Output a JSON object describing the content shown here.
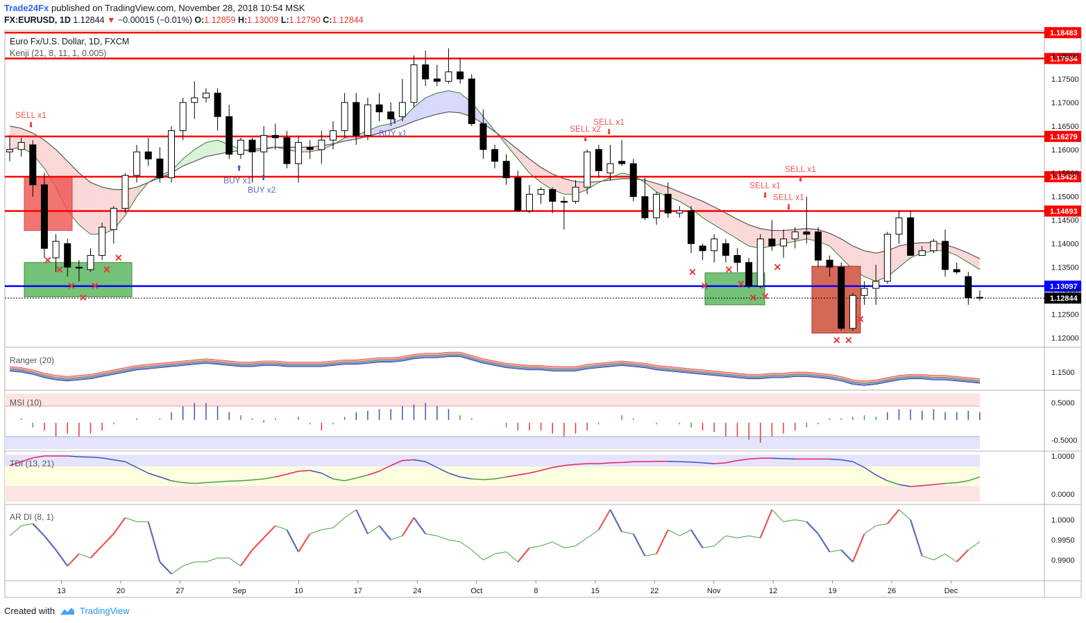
{
  "header": {
    "brand": "Trade24Fx",
    "published": "published on TradingView.com, November 28, 2018 10:54 MSK",
    "symbol": "FX:EURUSD, 1D",
    "last": "1.12844",
    "change": "−0.00015 (−0.01%)",
    "o_label": "O:",
    "o": "1.12859",
    "h_label": "H:",
    "h": "1.13009",
    "l_label": "L:",
    "l": "1.12790",
    "c_label": "C:",
    "c": "1.12844"
  },
  "footer": {
    "created": "Created with",
    "tv": "TradingView"
  },
  "colors": {
    "up": "#ffffff",
    "down": "#000000",
    "level": "#ff0000",
    "support": "#0000ff",
    "sell_zone": "#ef5350",
    "buy_zone": "#66bb6a",
    "cloud_red": "#f8c8c8",
    "cloud_green": "#c8f0c8",
    "cloud_blue": "#c8c8f8"
  },
  "chart_data": {
    "type": "candlestick",
    "title": "Euro Fx/U.S. Dollar, 1D, FXCM",
    "indicator": "Kenji (21, 8, 11, 1, 0.005)",
    "ylim": [
      1.118,
      1.185
    ],
    "ticks": [
      "1.12000",
      "1.12500",
      "1.13000",
      "1.13500",
      "1.14000",
      "1.14500",
      "1.15000",
      "1.15500",
      "1.16000",
      "1.16500",
      "1.17000",
      "1.17500",
      "1.18000"
    ],
    "levels": [
      {
        "value": 1.18483,
        "label": "1.18483",
        "color": "#ff0000"
      },
      {
        "value": 1.17934,
        "label": "1.17934",
        "color": "#ff0000"
      },
      {
        "value": 1.16279,
        "label": "1.16279",
        "color": "#ff0000"
      },
      {
        "value": 1.15422,
        "label": "1.15422",
        "color": "#ff0000"
      },
      {
        "value": 1.14693,
        "label": "1.14693",
        "color": "#ff0000"
      },
      {
        "value": 1.13097,
        "label": "1.13097",
        "color": "#0000ff"
      }
    ],
    "last_price": {
      "value": 1.12844,
      "label": "1.12844"
    },
    "x_labels": [
      "13",
      "20",
      "27",
      "Sep",
      "10",
      "17",
      "24",
      "Oct",
      "8",
      "15",
      "22",
      "Nov",
      "12",
      "19",
      "26",
      "Dec"
    ],
    "x_label_days": [
      3,
      10,
      17,
      24,
      31,
      38,
      45,
      52,
      59,
      66,
      73,
      80,
      87,
      94,
      101,
      108
    ],
    "candles": [
      [
        1.1595,
        1.163,
        1.1575,
        1.16
      ],
      [
        1.16,
        1.1625,
        1.1585,
        1.1615
      ],
      [
        1.161,
        1.162,
        1.15,
        1.1525
      ],
      [
        1.1525,
        1.155,
        1.137,
        1.139
      ],
      [
        1.137,
        1.142,
        1.134,
        1.1405
      ],
      [
        1.14,
        1.141,
        1.133,
        1.135
      ],
      [
        1.135,
        1.1365,
        1.132,
        1.1348
      ],
      [
        1.1345,
        1.139,
        1.134,
        1.1375
      ],
      [
        1.1375,
        1.1445,
        1.1365,
        1.1435
      ],
      [
        1.143,
        1.148,
        1.14,
        1.1475
      ],
      [
        1.1475,
        1.155,
        1.1465,
        1.1545
      ],
      [
        1.1545,
        1.161,
        1.153,
        1.1595
      ],
      [
        1.1595,
        1.1625,
        1.1565,
        1.158
      ],
      [
        1.158,
        1.1605,
        1.153,
        1.154
      ],
      [
        1.154,
        1.165,
        1.153,
        1.164
      ],
      [
        1.164,
        1.171,
        1.162,
        1.17
      ],
      [
        1.17,
        1.1745,
        1.1665,
        1.171
      ],
      [
        1.171,
        1.173,
        1.17,
        1.172
      ],
      [
        1.172,
        1.173,
        1.164,
        1.167
      ],
      [
        1.167,
        1.1695,
        1.158,
        1.159
      ],
      [
        1.159,
        1.1625,
        1.158,
        1.162
      ],
      [
        1.162,
        1.1625,
        1.153,
        1.1595
      ],
      [
        1.1595,
        1.165,
        1.154,
        1.163
      ],
      [
        1.163,
        1.1655,
        1.16,
        1.1625
      ],
      [
        1.1625,
        1.164,
        1.156,
        1.157
      ],
      [
        1.157,
        1.163,
        1.153,
        1.1615
      ],
      [
        1.1605,
        1.162,
        1.158,
        1.16
      ],
      [
        1.16,
        1.164,
        1.157,
        1.162
      ],
      [
        1.162,
        1.166,
        1.16,
        1.164
      ],
      [
        1.164,
        1.172,
        1.1625,
        1.17
      ],
      [
        1.17,
        1.172,
        1.161,
        1.163
      ],
      [
        1.163,
        1.171,
        1.162,
        1.1695
      ],
      [
        1.1695,
        1.172,
        1.166,
        1.168
      ],
      [
        1.168,
        1.17,
        1.165,
        1.1665
      ],
      [
        1.167,
        1.175,
        1.166,
        1.17
      ],
      [
        1.17,
        1.18,
        1.169,
        1.178
      ],
      [
        1.178,
        1.181,
        1.1735,
        1.175
      ],
      [
        1.175,
        1.178,
        1.1735,
        1.1745
      ],
      [
        1.1745,
        1.1815,
        1.174,
        1.1765
      ],
      [
        1.1765,
        1.1795,
        1.174,
        1.175
      ],
      [
        1.175,
        1.176,
        1.165,
        1.1655
      ],
      [
        1.1655,
        1.1685,
        1.158,
        1.16
      ],
      [
        1.16,
        1.161,
        1.156,
        1.1575
      ],
      [
        1.1575,
        1.159,
        1.1525,
        1.154
      ],
      [
        1.154,
        1.1555,
        1.1475,
        1.147
      ],
      [
        1.147,
        1.1525,
        1.1465,
        1.1505
      ],
      [
        1.1505,
        1.152,
        1.1485,
        1.1515
      ],
      [
        1.1515,
        1.152,
        1.1465,
        1.149
      ],
      [
        1.149,
        1.15,
        1.143,
        1.1488
      ],
      [
        1.149,
        1.1535,
        1.1485,
        1.152
      ],
      [
        1.152,
        1.16,
        1.1505,
        1.1595
      ],
      [
        1.16,
        1.161,
        1.154,
        1.1555
      ],
      [
        1.155,
        1.161,
        1.1535,
        1.157
      ],
      [
        1.1575,
        1.162,
        1.1565,
        1.157
      ],
      [
        1.157,
        1.158,
        1.149,
        1.15
      ],
      [
        1.15,
        1.154,
        1.145,
        1.1455
      ],
      [
        1.1455,
        1.151,
        1.144,
        1.1505
      ],
      [
        1.1505,
        1.153,
        1.1455,
        1.1465
      ],
      [
        1.1465,
        1.148,
        1.1455,
        1.147
      ],
      [
        1.147,
        1.148,
        1.138,
        1.14
      ],
      [
        1.1395,
        1.14,
        1.1365,
        1.1385
      ],
      [
        1.1385,
        1.142,
        1.136,
        1.141
      ],
      [
        1.14,
        1.141,
        1.136,
        1.1375
      ],
      [
        1.1375,
        1.139,
        1.134,
        1.136
      ],
      [
        1.136,
        1.137,
        1.1305,
        1.131
      ],
      [
        1.131,
        1.142,
        1.1305,
        1.141
      ],
      [
        1.141,
        1.145,
        1.1385,
        1.1395
      ],
      [
        1.1395,
        1.143,
        1.137,
        1.141
      ],
      [
        1.141,
        1.1435,
        1.139,
        1.1425
      ],
      [
        1.1425,
        1.15,
        1.14,
        1.142
      ],
      [
        1.1425,
        1.1435,
        1.135,
        1.1365
      ],
      [
        1.1365,
        1.1375,
        1.133,
        1.135
      ],
      [
        1.135,
        1.136,
        1.1215,
        1.122
      ],
      [
        1.122,
        1.1295,
        1.1215,
        1.129
      ],
      [
        1.129,
        1.132,
        1.127,
        1.1305
      ],
      [
        1.1305,
        1.1355,
        1.127,
        1.132
      ],
      [
        1.132,
        1.1425,
        1.1315,
        1.142
      ],
      [
        1.142,
        1.147,
        1.14,
        1.1455
      ],
      [
        1.1455,
        1.147,
        1.1375,
        1.1375
      ],
      [
        1.1375,
        1.1395,
        1.1375,
        1.1385
      ],
      [
        1.1385,
        1.141,
        1.138,
        1.1405
      ],
      [
        1.1405,
        1.143,
        1.133,
        1.1345
      ],
      [
        1.1345,
        1.136,
        1.1335,
        1.134
      ],
      [
        1.133,
        1.134,
        1.127,
        1.1285
      ],
      [
        1.12859,
        1.13009,
        1.1279,
        1.12844
      ]
    ],
    "first_candle_day": -7,
    "kenji_fast": [
      1.16,
      1.1605,
      1.159,
      1.156,
      1.152,
      1.147,
      1.144,
      1.142,
      1.142,
      1.143,
      1.146,
      1.15,
      1.153,
      1.1545,
      1.1555,
      1.158,
      1.16,
      1.1615,
      1.162,
      1.161,
      1.16,
      1.1595,
      1.16,
      1.1605,
      1.16,
      1.1595,
      1.1595,
      1.16,
      1.161,
      1.1625,
      1.163,
      1.164,
      1.165,
      1.1655,
      1.1665,
      1.169,
      1.171,
      1.172,
      1.1725,
      1.172,
      1.17,
      1.167,
      1.164,
      1.161,
      1.158,
      1.155,
      1.153,
      1.1515,
      1.1505,
      1.1505,
      1.1515,
      1.153,
      1.154,
      1.155,
      1.1545,
      1.153,
      1.151,
      1.15,
      1.149,
      1.1475,
      1.1455,
      1.144,
      1.1425,
      1.141,
      1.1395,
      1.139,
      1.1395,
      1.14,
      1.1405,
      1.141,
      1.1405,
      1.1395,
      1.137,
      1.1345,
      1.133,
      1.132,
      1.133,
      1.135,
      1.137,
      1.138,
      1.1385,
      1.1385,
      1.1375,
      1.136,
      1.1345
    ],
    "kenji_slow": [
      1.165,
      1.1645,
      1.1635,
      1.162,
      1.16,
      1.1575,
      1.155,
      1.153,
      1.152,
      1.1515,
      1.1515,
      1.152,
      1.153,
      1.154,
      1.155,
      1.1565,
      1.1575,
      1.1585,
      1.159,
      1.1595,
      1.1598,
      1.16,
      1.1603,
      1.1605,
      1.1605,
      1.1605,
      1.1605,
      1.1608,
      1.1612,
      1.1618,
      1.1622,
      1.1628,
      1.1635,
      1.1642,
      1.165,
      1.166,
      1.1668,
      1.1675,
      1.168,
      1.1678,
      1.167,
      1.1655,
      1.1638,
      1.162,
      1.16,
      1.158,
      1.1562,
      1.1548,
      1.1538,
      1.1532,
      1.153,
      1.1532,
      1.1535,
      1.1538,
      1.1538,
      1.1535,
      1.1528,
      1.152,
      1.151,
      1.15,
      1.149,
      1.1478,
      1.1465,
      1.1452,
      1.144,
      1.1432,
      1.1428,
      1.1428,
      1.143,
      1.1432,
      1.143,
      1.1422,
      1.141,
      1.1395,
      1.1385,
      1.138,
      1.1385,
      1.1395,
      1.14,
      1.1402,
      1.1402,
      1.1398,
      1.139,
      1.138,
      1.1368
    ],
    "signals": [
      {
        "text": "SELL x1",
        "type": "sell",
        "day": -5,
        "price": 1.165
      },
      {
        "text": "BUY x1",
        "type": "buy",
        "day": 24,
        "price": 1.1555
      },
      {
        "text": "BUY x2",
        "type": "buy",
        "day": 26,
        "price": 1.1535
      },
      {
        "text": "BUY x1",
        "type": "buy",
        "day": 42,
        "price": 1.1655
      },
      {
        "text": "SELL x2",
        "type": "sell",
        "day": 64,
        "price": 1.162
      },
      {
        "text": "SELL x1",
        "type": "sell",
        "day": 66,
        "price": 1.1635
      },
      {
        "text": "SELL x1",
        "type": "sell",
        "day": 82,
        "price": 1.15
      },
      {
        "text": "SELL x1",
        "type": "sell",
        "day": 84,
        "price": 1.1475
      },
      {
        "text": "SELL x1",
        "type": "sell",
        "day": 86,
        "price": 1.1535
      }
    ],
    "zones": [
      {
        "type": "sell",
        "d0": -6,
        "d1": -2,
        "top": 1.1543,
        "bottom": 1.1428
      },
      {
        "type": "buy",
        "d0": -6,
        "d1": 3,
        "top": 1.136,
        "bottom": 1.1287
      },
      {
        "type": "buy",
        "d0": 76,
        "d1": 81,
        "top": 1.1338,
        "bottom": 1.127
      },
      {
        "type": "buy",
        "d0": 85,
        "d1": 88,
        "top": 1.1352,
        "bottom": 1.121
      },
      {
        "type": "sell",
        "d0": 85,
        "d1": 88,
        "top": 1.1352,
        "bottom": 1.121
      }
    ],
    "crosses": [
      [
        -4,
        1.1365
      ],
      [
        -3,
        1.1345
      ],
      [
        -2,
        1.131
      ],
      [
        -1,
        1.1285
      ],
      [
        0,
        1.131
      ],
      [
        1,
        1.1345
      ],
      [
        2,
        1.137
      ],
      [
        74,
        1.134
      ],
      [
        75,
        1.131
      ],
      [
        77,
        1.1345
      ],
      [
        78,
        1.1315
      ],
      [
        79,
        1.1285
      ],
      [
        80,
        1.1288
      ],
      [
        81,
        1.135
      ],
      [
        87,
        1.1195
      ],
      [
        88,
        1.1195
      ],
      [
        89,
        1.124
      ]
    ],
    "panes": [
      {
        "name": "Ranger (20)",
        "ticks": [
          "1.1500"
        ]
      },
      {
        "name": "MSI (10)",
        "ticks": [
          "0.5000",
          "-0.5000"
        ]
      },
      {
        "name": "TDI (13, 21)",
        "ticks": [
          "1.0000",
          "0.0000"
        ]
      },
      {
        "name": "AR DI (8, 1)",
        "ticks": [
          "1.0000",
          "0.9950",
          "0.9900"
        ]
      }
    ],
    "ranger": [
      1.153,
      1.152,
      1.15,
      1.147,
      1.145,
      1.144,
      1.145,
      1.146,
      1.148,
      1.15,
      1.152,
      1.154,
      1.155,
      1.156,
      1.157,
      1.158,
      1.159,
      1.16,
      1.159,
      1.158,
      1.157,
      1.157,
      1.158,
      1.158,
      1.157,
      1.157,
      1.157,
      1.157,
      1.158,
      1.159,
      1.159,
      1.16,
      1.161,
      1.161,
      1.162,
      1.164,
      1.165,
      1.165,
      1.166,
      1.166,
      1.163,
      1.16,
      1.158,
      1.156,
      1.155,
      1.154,
      1.154,
      1.153,
      1.153,
      1.153,
      1.155,
      1.156,
      1.157,
      1.158,
      1.157,
      1.156,
      1.154,
      1.153,
      1.152,
      1.151,
      1.15,
      1.149,
      1.148,
      1.147,
      1.146,
      1.146,
      1.147,
      1.147,
      1.148,
      1.148,
      1.147,
      1.146,
      1.144,
      1.141,
      1.14,
      1.141,
      1.143,
      1.145,
      1.146,
      1.146,
      1.145,
      1.145,
      1.144,
      1.143,
      1.142
    ],
    "msi": [
      0.0,
      0.1,
      -0.2,
      -0.3,
      -0.5,
      -0.4,
      -0.5,
      -0.4,
      -0.3,
      -0.1,
      0.05,
      0.1,
      0.05,
      0.1,
      0.3,
      0.5,
      0.6,
      0.6,
      0.5,
      0.3,
      0.2,
      0.1,
      -0.05,
      0.1,
      0.0,
      0.15,
      -0.1,
      -0.3,
      -0.1,
      0.15,
      0.3,
      0.35,
      0.4,
      0.4,
      0.5,
      0.55,
      0.6,
      0.5,
      0.4,
      0.2,
      0.1,
      0.0,
      0.0,
      -0.2,
      -0.3,
      -0.3,
      -0.3,
      -0.4,
      -0.5,
      -0.4,
      -0.3,
      -0.1,
      0.0,
      0.2,
      0.1,
      0.05,
      -0.1,
      0.0,
      -0.1,
      -0.2,
      -0.3,
      -0.35,
      -0.5,
      -0.5,
      -0.6,
      -0.7,
      -0.5,
      -0.4,
      -0.3,
      -0.2,
      -0.1,
      0.1,
      0.1,
      0.15,
      0.2,
      0.15,
      0.3,
      0.4,
      0.4,
      0.35,
      0.4,
      0.3,
      0.3,
      0.35,
      0.3
    ],
    "tdi": [
      0.75,
      0.85,
      0.95,
      1.0,
      1.0,
      1.0,
      0.98,
      0.97,
      0.95,
      0.9,
      0.85,
      0.7,
      0.55,
      0.45,
      0.35,
      0.3,
      0.28,
      0.3,
      0.32,
      0.34,
      0.35,
      0.37,
      0.4,
      0.45,
      0.52,
      0.6,
      0.62,
      0.55,
      0.4,
      0.35,
      0.42,
      0.5,
      0.6,
      0.75,
      0.88,
      0.9,
      0.85,
      0.7,
      0.55,
      0.45,
      0.4,
      0.38,
      0.4,
      0.45,
      0.5,
      0.55,
      0.62,
      0.7,
      0.75,
      0.78,
      0.8,
      0.8,
      0.82,
      0.83,
      0.85,
      0.85,
      0.86,
      0.86,
      0.85,
      0.84,
      0.82,
      0.8,
      0.82,
      0.88,
      0.92,
      0.94,
      0.94,
      0.93,
      0.92,
      0.92,
      0.92,
      0.92,
      0.9,
      0.85,
      0.7,
      0.5,
      0.35,
      0.25,
      0.2,
      0.22,
      0.25,
      0.28,
      0.3,
      0.35,
      0.45
    ],
    "ardi": [
      0.996,
      0.9985,
      0.999,
      0.996,
      0.9925,
      0.9885,
      0.9915,
      0.9905,
      0.9935,
      0.9965,
      1.0005,
      0.9995,
      0.9995,
      0.9895,
      0.9865,
      0.9885,
      0.9895,
      0.9895,
      0.9905,
      0.9905,
      0.9885,
      0.9925,
      0.9955,
      0.9985,
      0.9975,
      0.992,
      0.9965,
      0.9975,
      0.998,
      1.0005,
      1.0025,
      0.9965,
      0.9985,
      0.995,
      0.996,
      1.0005,
      0.9965,
      0.996,
      0.995,
      0.9945,
      0.9925,
      0.99,
      0.9915,
      0.992,
      0.9895,
      0.993,
      0.9935,
      0.9945,
      0.993,
      0.9935,
      0.9955,
      0.9975,
      1.0025,
      0.997,
      0.9965,
      0.991,
      0.9915,
      0.9975,
      0.996,
      0.9975,
      0.993,
      0.9935,
      0.996,
      0.9955,
      0.996,
      0.9955,
      1.0025,
      0.9995,
      1.0,
      0.9995,
      0.9965,
      0.992,
      0.9925,
      0.9895,
      0.9965,
      0.9985,
      0.999,
      1.0025,
      1.0,
      0.991,
      0.99,
      0.9915,
      0.9895,
      0.9925,
      0.9945
    ]
  }
}
